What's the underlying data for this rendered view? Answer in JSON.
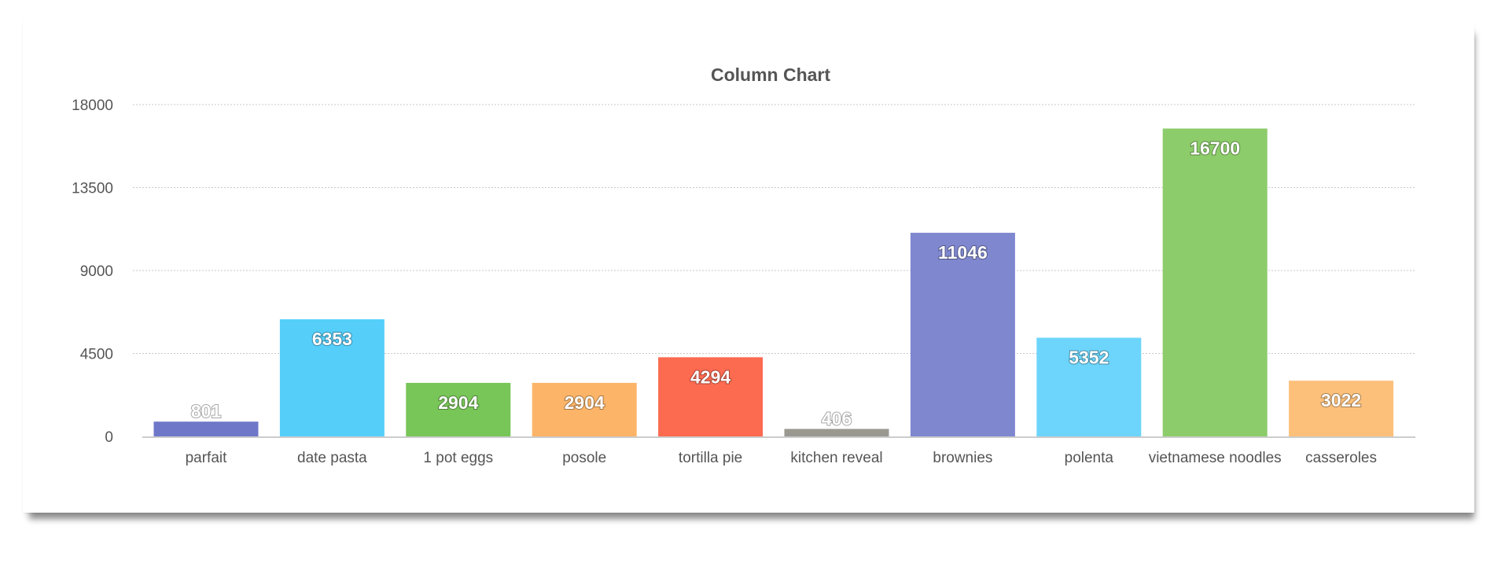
{
  "chart_data": {
    "type": "bar",
    "title": "Column Chart",
    "xlabel": "",
    "ylabel": "",
    "ylim": [
      0,
      18000
    ],
    "yticks": [
      0,
      4500,
      9000,
      13500,
      18000
    ],
    "grid": true,
    "categories": [
      "parfait",
      "date pasta",
      "1 pot eggs",
      "posole",
      "tortilla pie",
      "kitchen reveal",
      "brownies",
      "polenta",
      "vietnamese noodles",
      "casseroles"
    ],
    "values": [
      801,
      6353,
      2904,
      2904,
      4294,
      406,
      11046,
      5352,
      16700,
      3022
    ],
    "colors": [
      "#6f77c8",
      "#55cffa",
      "#78c558",
      "#fcb468",
      "#fc6a50",
      "#999891",
      "#7f87cf",
      "#6dd5fb",
      "#8ccc6a",
      "#fcc07a"
    ]
  }
}
